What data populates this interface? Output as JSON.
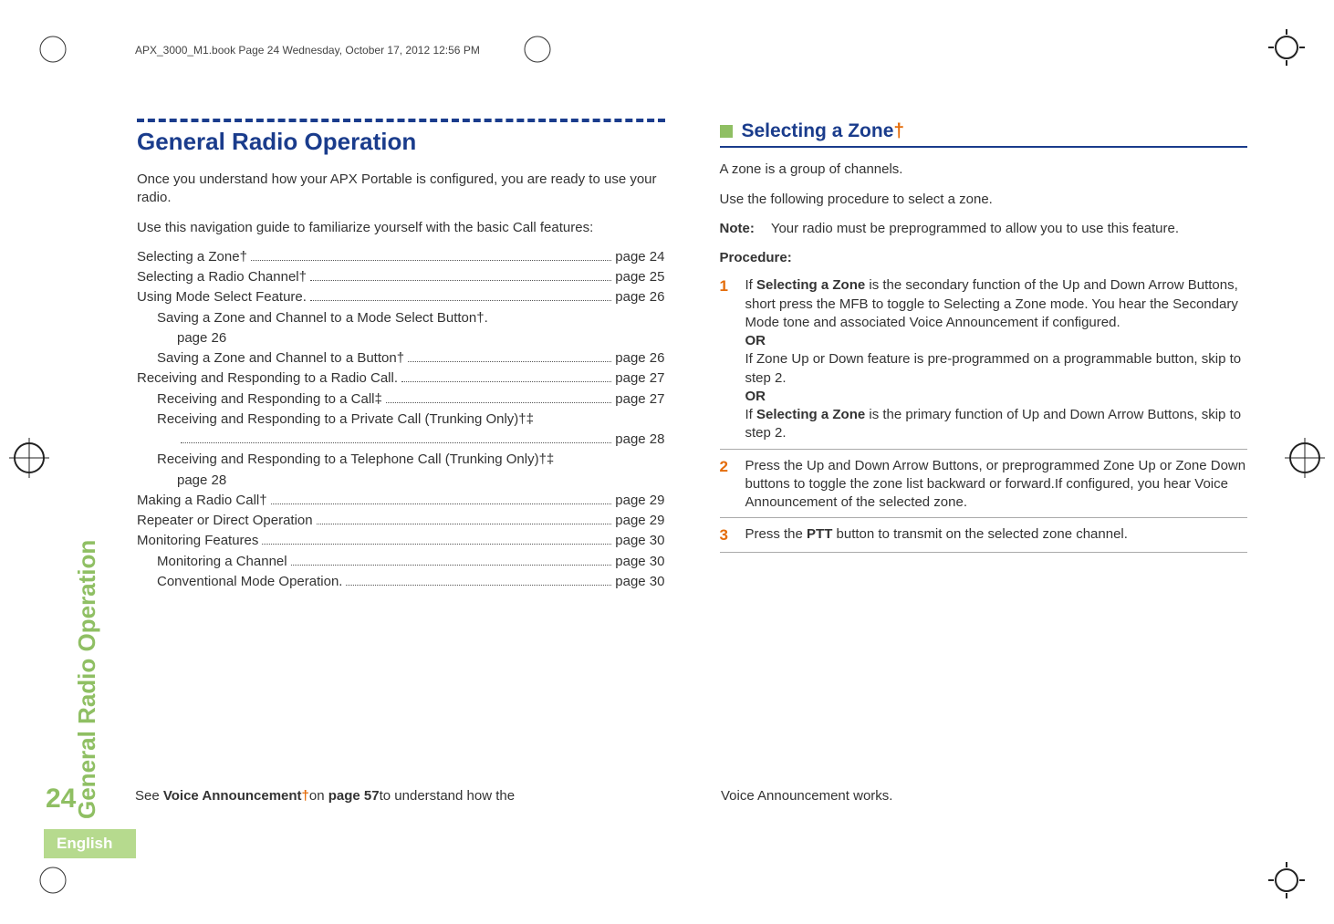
{
  "header": {
    "running_text": "APX_3000_M1.book  Page 24  Wednesday, October 17, 2012  12:56 PM"
  },
  "colors": {
    "heading_blue": "#1a3c8c",
    "accent_green": "#8fbf63",
    "tab_green": "#b6da8e",
    "step_orange": "#e46c0a",
    "body_text": "#333333",
    "rule_gray": "#aaaaaa"
  },
  "left": {
    "section_title": "General Radio Operation",
    "intro1": "Once you understand how your APX Portable is configured, you are ready to use your radio.",
    "intro2": "Use this navigation guide to familiarize yourself with the basic Call features:",
    "toc": [
      {
        "label": "Selecting a Zone†",
        "page": "page 24",
        "indent": 0
      },
      {
        "label": "Selecting a Radio Channel†",
        "page": "page 25",
        "indent": 0
      },
      {
        "label": "Using Mode Select Feature.",
        "page": "page 26",
        "indent": 0
      },
      {
        "label": "Saving a Zone and Channel to a Mode Select Button†.",
        "page": "page 26",
        "indent": 1,
        "wrap": true
      },
      {
        "label": "Saving a Zone and Channel to a Button†",
        "page": "page 26",
        "indent": 1
      },
      {
        "label": "Receiving and Responding to a Radio Call.",
        "page": "page 27",
        "indent": 0
      },
      {
        "label": "Receiving and Responding to a Call‡",
        "page": "page 27",
        "indent": 1
      },
      {
        "label": "Receiving and Responding to a Private Call (Trunking Only)†‡",
        "page": "page 28",
        "indent": 1,
        "wrap": true,
        "dotsline": true
      },
      {
        "label": "Receiving and Responding to a Telephone Call (Trunking Only)†‡",
        "page": "page 28",
        "indent": 1,
        "wrap": true
      },
      {
        "label": "Making a Radio Call†",
        "page": "page 29",
        "indent": 0
      },
      {
        "label": "Repeater or Direct Operation",
        "page": "page 29",
        "indent": 0
      },
      {
        "label": "Monitoring Features",
        "page": "page 30",
        "indent": 0
      },
      {
        "label": "Monitoring a Channel",
        "page": "page 30",
        "indent": 1
      },
      {
        "label": "Conventional Mode Operation.",
        "page": "page 30",
        "indent": 1
      }
    ],
    "footer_pre": "See ",
    "footer_bold1": "Voice Announcement",
    "footer_dagger": "†",
    "footer_mid": "on ",
    "footer_bold2": "page 57",
    "footer_post": "to understand how the "
  },
  "right": {
    "h2": "Selecting a Zone",
    "h2_dagger": "†",
    "para1": "A zone is a group of channels.",
    "para2": "Use the following procedure to select a zone.",
    "note_label": "Note:",
    "note_text": "Your radio must be preprogrammed to allow you to use this feature.",
    "procedure_label": "Procedure:",
    "steps": [
      {
        "num": "1",
        "lines": [
          {
            "pre": "If ",
            "bold": "Selecting a Zone",
            "post": " is the secondary function of the Up and Down Arrow Buttons, short press the MFB to toggle to Selecting a Zone mode. You hear the Secondary Mode tone and associated Voice Announcement if configured."
          },
          {
            "bold": "OR"
          },
          {
            "plain": "If Zone Up or Down feature is pre-programmed on a programmable button, skip to step 2."
          },
          {
            "bold": "OR"
          },
          {
            "pre": "If ",
            "bold": "Selecting a Zone",
            "post": " is the primary function of Up and Down Arrow Buttons, skip to step 2."
          }
        ]
      },
      {
        "num": "2",
        "lines": [
          {
            "plain": "Press the Up and Down Arrow Buttons, or preprogrammed Zone Up or Zone Down buttons to toggle the zone list backward or forward.If configured, you hear Voice Announcement of the selected zone."
          }
        ]
      },
      {
        "num": "3",
        "lines": [
          {
            "pre": "Press the ",
            "bold": "PTT",
            "post": " button to transmit on the selected zone channel."
          }
        ]
      }
    ],
    "footer": "Voice Announcement works."
  },
  "side": {
    "tab_text": "General Radio Operation",
    "page_number": "24",
    "language": "English"
  }
}
